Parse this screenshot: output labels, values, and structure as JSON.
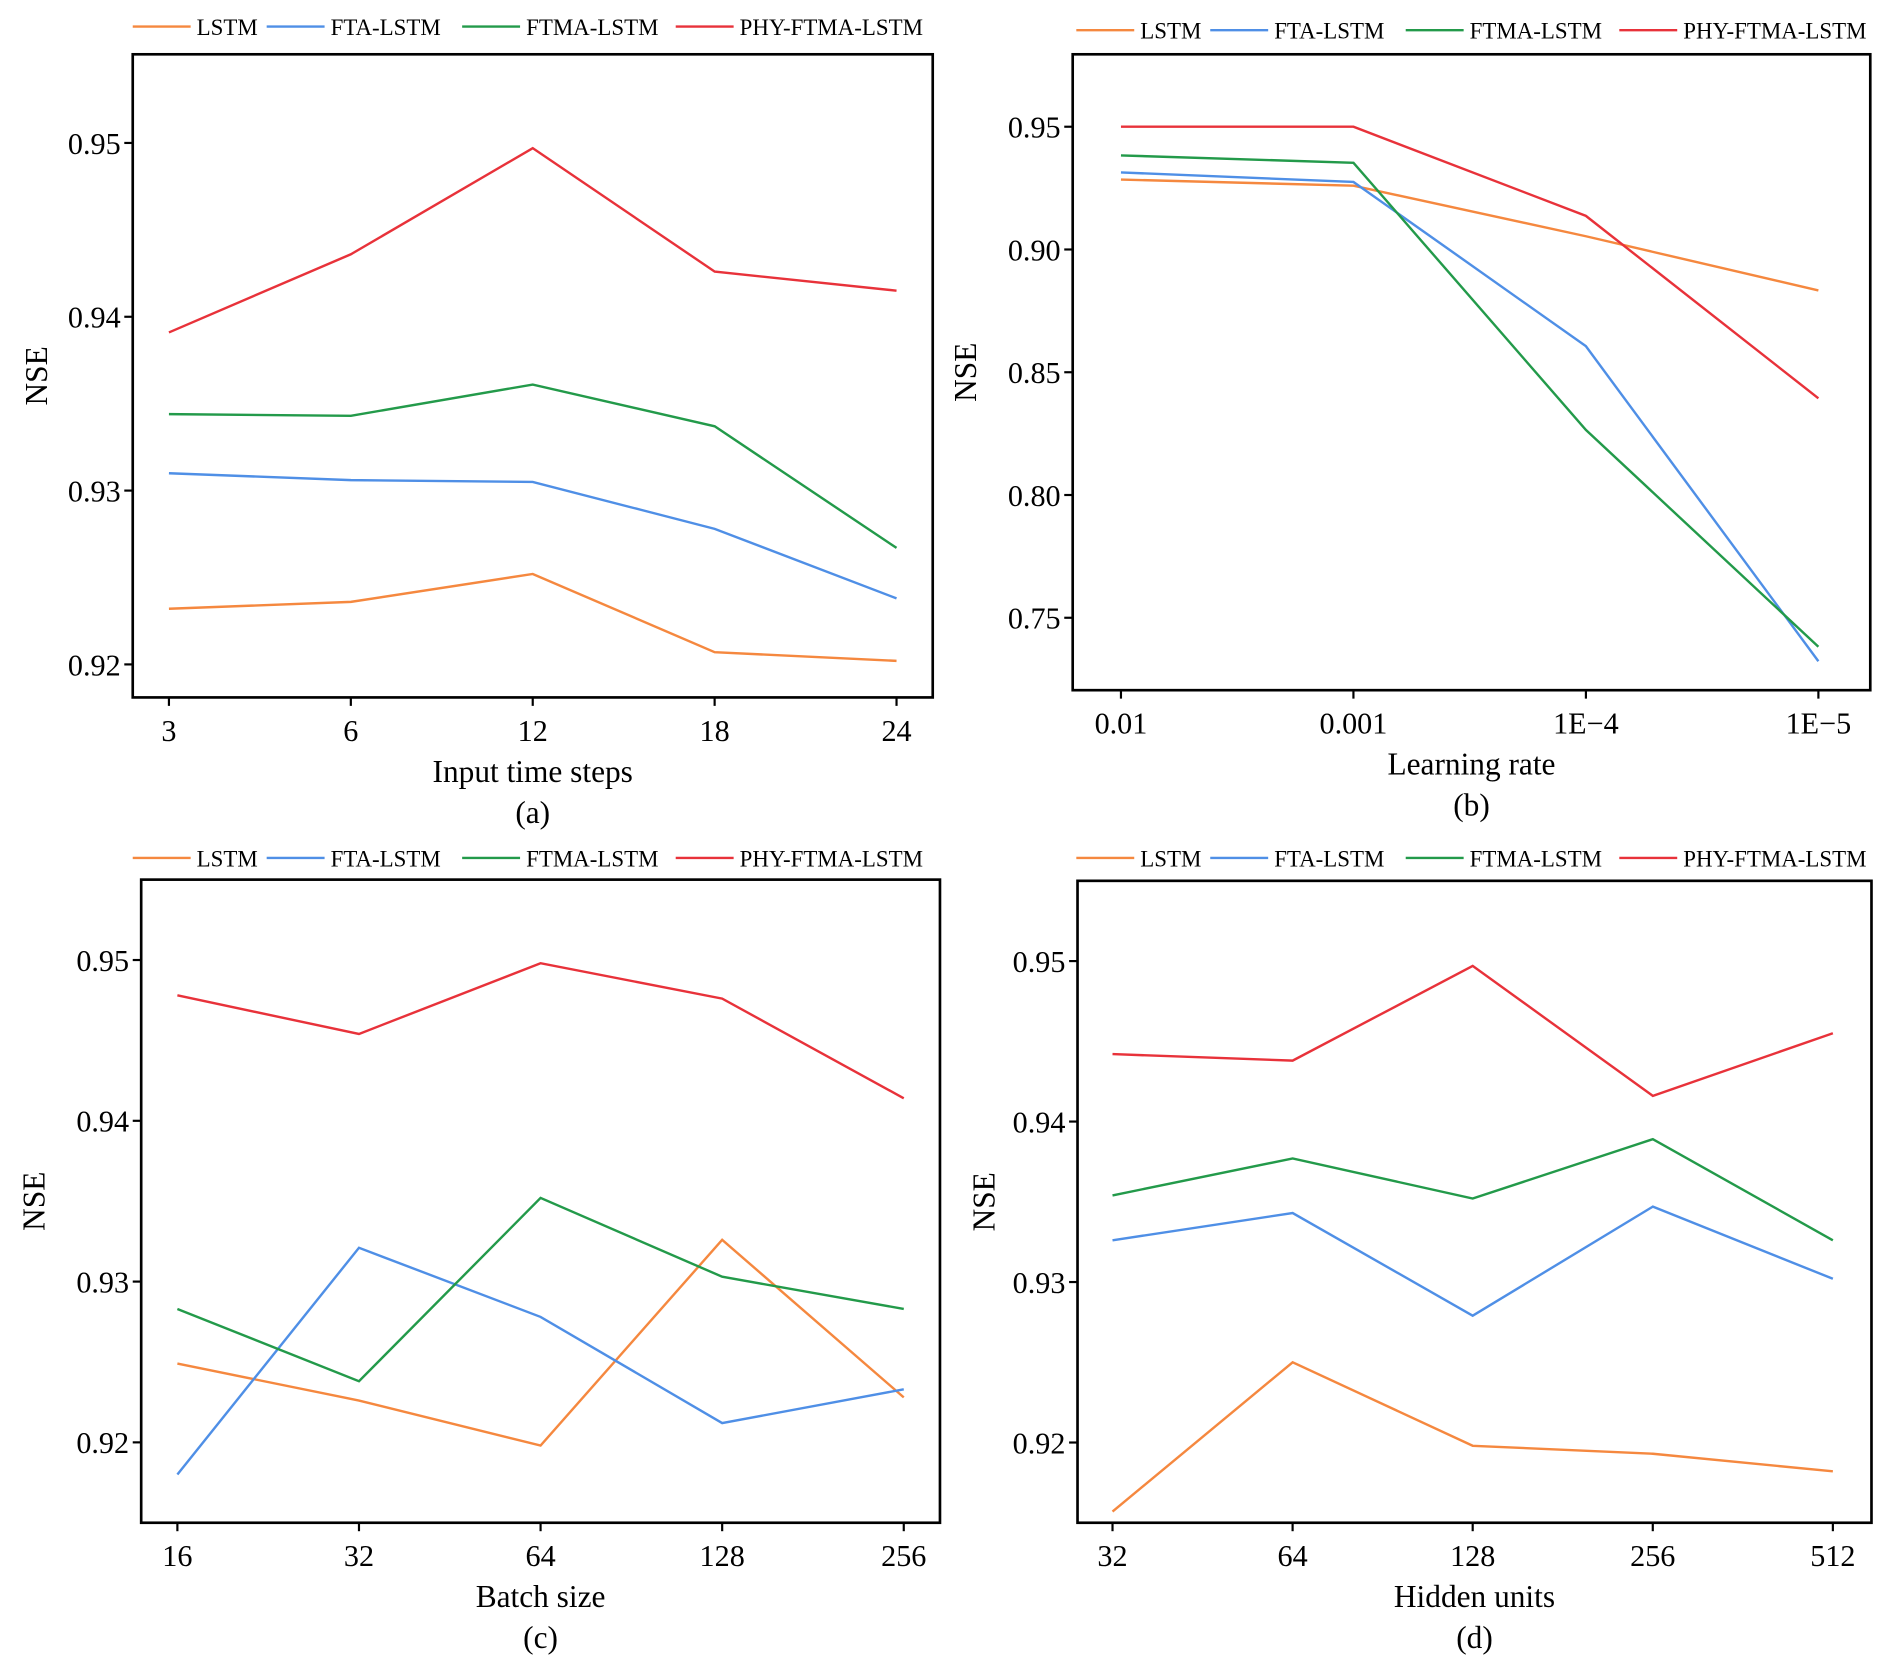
{
  "colors": {
    "LSTM": "#f5883f",
    "FTA-LSTM": "#4f8fe6",
    "FTMA-LSTM": "#239a4a",
    "PHY-FTMA-LSTM": "#e8323a"
  },
  "chart_data": [
    {
      "type": "line",
      "caption": "(a)",
      "xlabel": "Input time steps",
      "ylabel": "NSE",
      "categories": [
        "3",
        "6",
        "12",
        "18",
        "24"
      ],
      "yticks": [
        "0.92",
        "0.93",
        "0.94",
        "0.95"
      ],
      "ylim": [
        0.9181,
        0.9551
      ],
      "legend_placement": "top",
      "grid": false,
      "series": [
        {
          "name": "LSTM",
          "values": [
            0.9232,
            0.9236,
            0.9252,
            0.9207,
            0.9202
          ]
        },
        {
          "name": "FTA-LSTM",
          "values": [
            0.931,
            0.9306,
            0.9305,
            0.9278,
            0.9238
          ]
        },
        {
          "name": "FTMA-LSTM",
          "values": [
            0.9344,
            0.9343,
            0.9361,
            0.9337,
            0.9267
          ]
        },
        {
          "name": "PHY-FTMA-LSTM",
          "values": [
            0.9391,
            0.9436,
            0.9497,
            0.9426,
            0.9415
          ]
        }
      ]
    },
    {
      "type": "line",
      "caption": "(b)",
      "xlabel": "Learning rate",
      "ylabel": "NSE",
      "categories": [
        "0.01",
        "0.001",
        "1E−4",
        "1E−5"
      ],
      "yticks": [
        "0.75",
        "0.80",
        "0.85",
        "0.90",
        "0.95"
      ],
      "ylim": [
        0.7205,
        0.9795
      ],
      "legend_placement": "top",
      "grid": false,
      "series": [
        {
          "name": "LSTM",
          "values": [
            0.9285,
            0.926,
            0.9054,
            0.8833
          ]
        },
        {
          "name": "FTA-LSTM",
          "values": [
            0.9314,
            0.9275,
            0.8606,
            0.7323
          ]
        },
        {
          "name": "FTMA-LSTM",
          "values": [
            0.9383,
            0.9353,
            0.8265,
            0.7382
          ]
        },
        {
          "name": "PHY-FTMA-LSTM",
          "values": [
            0.95,
            0.95,
            0.9137,
            0.8394
          ]
        }
      ]
    },
    {
      "type": "line",
      "caption": "(c)",
      "xlabel": "Batch size",
      "ylabel": "NSE",
      "categories": [
        "16",
        "32",
        "64",
        "128",
        "256"
      ],
      "yticks": [
        "0.92",
        "0.93",
        "0.94",
        "0.95"
      ],
      "ylim": [
        0.915,
        0.955
      ],
      "legend_placement": "top",
      "grid": false,
      "series": [
        {
          "name": "LSTM",
          "values": [
            0.9249,
            0.9226,
            0.9198,
            0.9326,
            0.9228
          ]
        },
        {
          "name": "FTA-LSTM",
          "values": [
            0.918,
            0.9321,
            0.9278,
            0.9212,
            0.9233
          ]
        },
        {
          "name": "FTMA-LSTM",
          "values": [
            0.9283,
            0.9238,
            0.9352,
            0.9303,
            0.9283
          ]
        },
        {
          "name": "PHY-FTMA-LSTM",
          "values": [
            0.9478,
            0.9454,
            0.9498,
            0.9476,
            0.9414
          ]
        }
      ]
    },
    {
      "type": "line",
      "caption": "(d)",
      "xlabel": "Hidden units",
      "ylabel": "NSE",
      "categories": [
        "32",
        "64",
        "128",
        "256",
        "512"
      ],
      "yticks": [
        "0.92",
        "0.93",
        "0.94",
        "0.95"
      ],
      "ylim": [
        0.915,
        0.955
      ],
      "legend_placement": "top",
      "grid": false,
      "series": [
        {
          "name": "LSTM",
          "values": [
            0.9157,
            0.925,
            0.9198,
            0.9193,
            0.9182
          ]
        },
        {
          "name": "FTA-LSTM",
          "values": [
            0.9326,
            0.9343,
            0.9279,
            0.9347,
            0.9302
          ]
        },
        {
          "name": "FTMA-LSTM",
          "values": [
            0.9354,
            0.9377,
            0.9352,
            0.9389,
            0.9326
          ]
        },
        {
          "name": "PHY-FTMA-LSTM",
          "values": [
            0.9442,
            0.9438,
            0.9497,
            0.9416,
            0.9455
          ]
        }
      ]
    }
  ]
}
